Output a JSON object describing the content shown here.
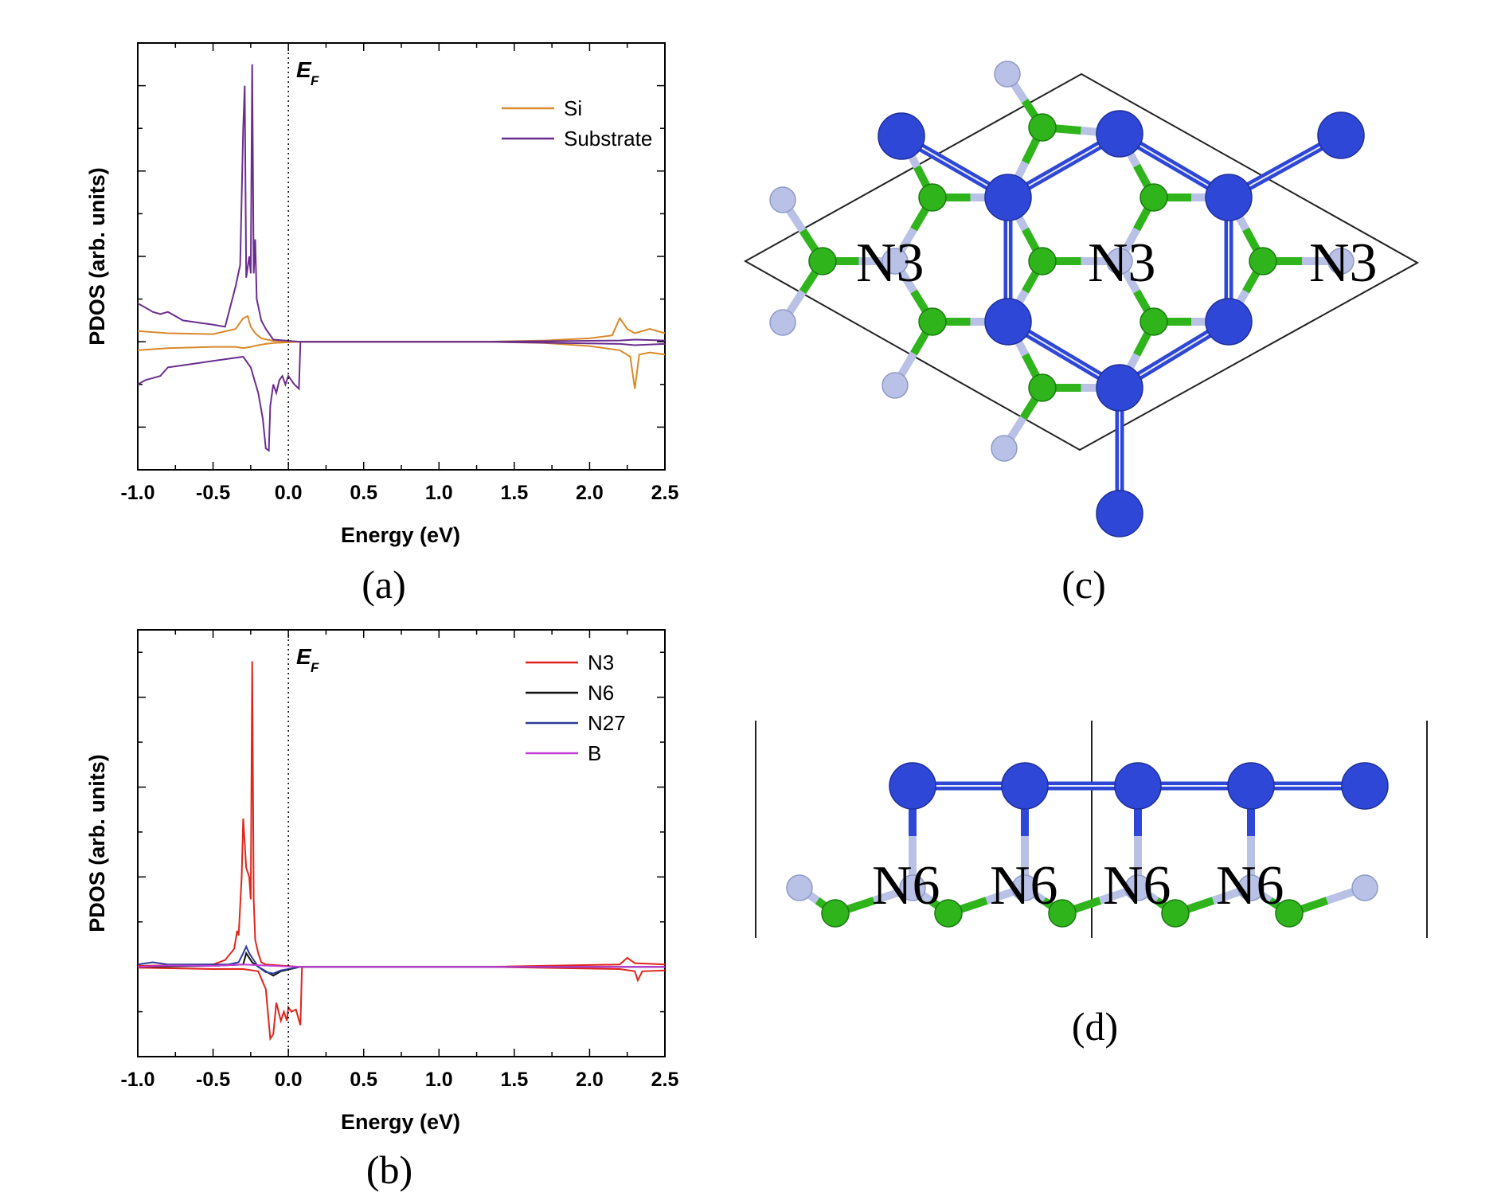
{
  "colors": {
    "Si": "#d8892a",
    "Substrate": "#6a2d8f",
    "N3": "#e0251b",
    "N6": "#111111",
    "N27": "#2a3b9a",
    "B": "#c23ad6",
    "atom_large": "#2f47d6",
    "atom_small": "#b9c2e6",
    "atom_green": "#2fb41c",
    "cell_line": "#222222"
  },
  "chart_data": [
    {
      "type": "line",
      "panel": "(a)",
      "xlabel": "Energy (eV)",
      "ylabel": "PDOS (arb. units)",
      "xlim": [
        -1.0,
        2.5
      ],
      "ylim": [
        -3.0,
        7.0
      ],
      "x_ticks": [
        "-1.0",
        "-0.5",
        "0.0",
        "0.5",
        "1.0",
        "1.5",
        "2.0",
        "2.5"
      ],
      "fermi_label": "E",
      "fermi_sub": "F",
      "fermi_x": 0.0,
      "legend_position": "top-right",
      "series": [
        {
          "name": "Si",
          "color_key": "Si",
          "x": [
            -1.0,
            -0.8,
            -0.5,
            -0.35,
            -0.3,
            -0.27,
            -0.25,
            -0.22,
            -0.18,
            -0.1,
            0.08,
            1.3,
            1.7,
            2.0,
            2.15,
            2.2,
            2.25,
            2.3,
            2.4,
            2.5
          ],
          "y": [
            0.25,
            0.2,
            0.18,
            0.3,
            0.55,
            0.6,
            0.35,
            0.2,
            0.08,
            0.02,
            0.0,
            0.0,
            0.03,
            0.08,
            0.15,
            0.55,
            0.3,
            0.2,
            0.3,
            0.2
          ]
        },
        {
          "name": "Si",
          "color_key": "Si",
          "x": [
            -1.0,
            -0.8,
            -0.5,
            -0.35,
            -0.3,
            -0.25,
            -0.2,
            -0.15,
            -0.1,
            0.08,
            1.3,
            1.7,
            2.0,
            2.2,
            2.27,
            2.3,
            2.33,
            2.4,
            2.5
          ],
          "y": [
            -0.2,
            -0.15,
            -0.12,
            -0.12,
            -0.15,
            -0.12,
            -0.08,
            -0.05,
            -0.03,
            0.0,
            0.0,
            -0.03,
            -0.1,
            -0.2,
            -0.35,
            -1.1,
            -0.3,
            -0.25,
            -0.3
          ]
        },
        {
          "name": "Substrate",
          "color_key": "Substrate",
          "x": [
            -1.0,
            -0.95,
            -0.9,
            -0.85,
            -0.8,
            -0.75,
            -0.7,
            -0.6,
            -0.5,
            -0.42,
            -0.38,
            -0.35,
            -0.32,
            -0.3,
            -0.29,
            -0.28,
            -0.26,
            -0.25,
            -0.24,
            -0.23,
            -0.22,
            -0.21,
            -0.18,
            -0.15,
            -0.1,
            0.08,
            1.3,
            2.2,
            2.3,
            2.5
          ],
          "y": [
            0.9,
            0.8,
            0.7,
            0.65,
            0.7,
            0.6,
            0.5,
            0.45,
            0.4,
            0.35,
            0.9,
            1.3,
            1.8,
            5.0,
            6.0,
            1.5,
            2.0,
            1.6,
            6.5,
            1.6,
            2.4,
            1.0,
            0.5,
            0.3,
            0.05,
            0.0,
            0.0,
            0.03,
            0.05,
            0.03
          ]
        },
        {
          "name": "Substrate",
          "color_key": "Substrate",
          "x": [
            -1.0,
            -0.95,
            -0.9,
            -0.85,
            -0.8,
            -0.7,
            -0.6,
            -0.5,
            -0.4,
            -0.3,
            -0.25,
            -0.2,
            -0.17,
            -0.15,
            -0.13,
            -0.12,
            -0.1,
            -0.08,
            -0.06,
            -0.04,
            -0.02,
            0.0,
            0.04,
            0.07,
            0.08,
            1.3,
            2.2,
            2.3,
            2.5
          ],
          "y": [
            -1.0,
            -0.9,
            -0.85,
            -0.8,
            -0.6,
            -0.55,
            -0.5,
            -0.45,
            -0.4,
            -0.35,
            -0.6,
            -1.2,
            -1.8,
            -2.5,
            -2.55,
            -1.5,
            -1.0,
            -1.2,
            -0.9,
            -0.8,
            -1.0,
            -0.8,
            -1.0,
            -1.1,
            0.0,
            0.0,
            -0.05,
            -0.08,
            -0.05
          ]
        }
      ]
    },
    {
      "type": "line",
      "panel": "(b)",
      "xlabel": "Energy (eV)",
      "ylabel": "PDOS (arb. units)",
      "xlim": [
        -1.0,
        2.5
      ],
      "ylim": [
        -2.0,
        7.5
      ],
      "x_ticks": [
        "-1.0",
        "-0.5",
        "0.0",
        "0.5",
        "1.0",
        "1.5",
        "2.0",
        "2.5"
      ],
      "fermi_label": "E",
      "fermi_sub": "F",
      "fermi_x": 0.0,
      "legend_position": "top-right",
      "series": [
        {
          "name": "N3",
          "color_key": "N3",
          "x": [
            -1.0,
            -0.5,
            -0.42,
            -0.36,
            -0.34,
            -0.33,
            -0.31,
            -0.3,
            -0.28,
            -0.26,
            -0.25,
            -0.24,
            -0.23,
            -0.22,
            -0.2,
            -0.18,
            -0.15,
            0.08,
            1.3,
            2.2,
            2.25,
            2.3,
            2.5
          ],
          "y": [
            0.02,
            0.05,
            0.15,
            0.4,
            0.8,
            0.7,
            2.0,
            3.3,
            2.2,
            2.0,
            1.5,
            6.8,
            1.5,
            0.6,
            0.3,
            0.1,
            0.05,
            0.0,
            0.0,
            0.05,
            0.2,
            0.08,
            0.05
          ]
        },
        {
          "name": "N3",
          "color_key": "N3",
          "x": [
            -1.0,
            -0.5,
            -0.3,
            -0.2,
            -0.15,
            -0.12,
            -0.1,
            -0.08,
            -0.05,
            -0.03,
            -0.01,
            0.0,
            0.02,
            0.05,
            0.08,
            0.09,
            1.3,
            2.2,
            2.3,
            2.32,
            2.35,
            2.5
          ],
          "y": [
            -0.02,
            -0.05,
            -0.05,
            -0.1,
            -0.5,
            -1.6,
            -1.5,
            -0.8,
            -1.2,
            -1.0,
            -1.2,
            -0.9,
            -1.0,
            -0.95,
            -1.3,
            0.0,
            0.0,
            -0.05,
            -0.1,
            -0.3,
            -0.1,
            -0.08
          ]
        },
        {
          "name": "N6",
          "color_key": "N6",
          "x": [
            -1.0,
            -0.5,
            -0.3,
            -0.28,
            -0.26,
            -0.24,
            -0.2,
            -0.15,
            -0.1,
            -0.05,
            0.08,
            2.5
          ],
          "y": [
            0.0,
            0.02,
            0.05,
            0.3,
            0.2,
            0.1,
            0.0,
            -0.1,
            -0.2,
            -0.1,
            0.0,
            0.0
          ]
        },
        {
          "name": "N27",
          "color_key": "N27",
          "x": [
            -1.0,
            -0.9,
            -0.8,
            -0.6,
            -0.4,
            -0.33,
            -0.3,
            -0.28,
            -0.26,
            -0.24,
            -0.22,
            -0.2,
            -0.15,
            -0.1,
            -0.05,
            0.08,
            1.3,
            2.5
          ],
          "y": [
            0.05,
            0.1,
            0.05,
            0.05,
            0.05,
            0.1,
            0.3,
            0.45,
            0.3,
            0.2,
            0.1,
            0.0,
            -0.12,
            -0.15,
            -0.08,
            0.0,
            0.0,
            0.0
          ]
        },
        {
          "name": "B",
          "color_key": "B",
          "x": [
            -1.0,
            -0.8,
            -0.5,
            -0.3,
            -0.1,
            0.08,
            2.5
          ],
          "y": [
            0.0,
            0.03,
            0.02,
            0.05,
            0.02,
            0.0,
            0.0
          ]
        }
      ]
    }
  ],
  "panels": {
    "a": "(a)",
    "b": "(b)",
    "c": "(c)",
    "d": "(d)"
  },
  "structure_labels": {
    "top_view": [
      "N3",
      "N3",
      "N3"
    ],
    "side_view": [
      "N6",
      "N6",
      "N6",
      "N6"
    ]
  }
}
